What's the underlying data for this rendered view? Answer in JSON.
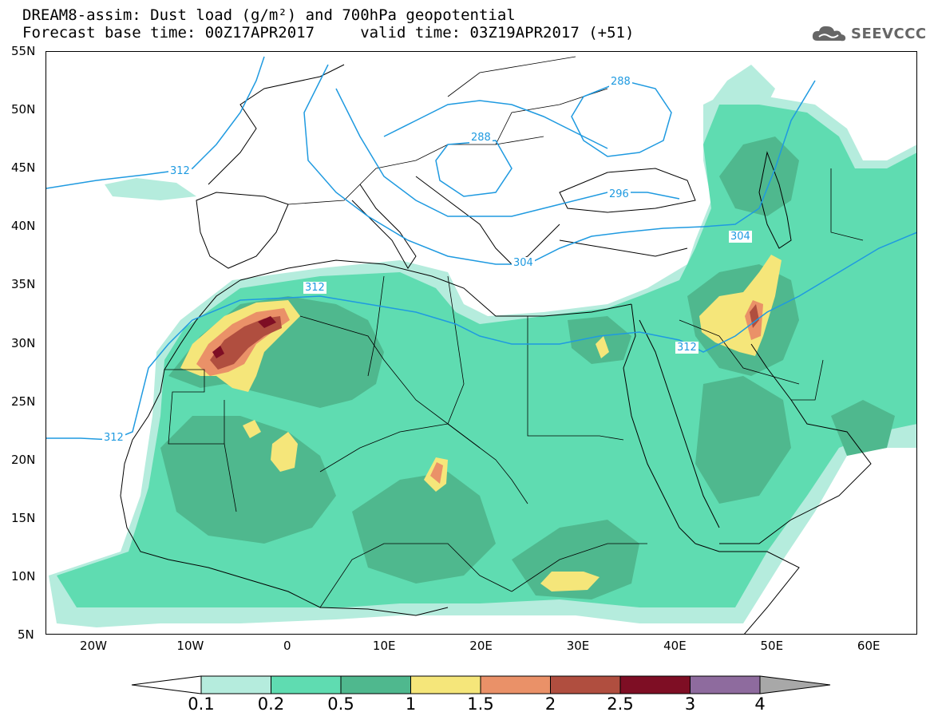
{
  "title_line1": "DREAM8-assim: Dust load (g/m²) and 700hPa geopotential",
  "title_line2": "Forecast base time: 00Z17APR2017     valid time: 03Z19APR2017 (+51)",
  "logo": {
    "icon": "cloud-icon",
    "text": "SEEVCCC"
  },
  "lat_labels": [
    "55N",
    "50N",
    "45N",
    "40N",
    "35N",
    "30N",
    "25N",
    "20N",
    "15N",
    "10N",
    "5N"
  ],
  "lon_labels": [
    "20W",
    "10W",
    "0",
    "10E",
    "20E",
    "30E",
    "40E",
    "50E",
    "60E"
  ],
  "contour_labels": {
    "c288_east": "288",
    "c288_balkan": "288",
    "c296": "296",
    "c304_greece": "304",
    "c304_east": "304",
    "c312_west_north": "312",
    "c312_africa": "312",
    "c312_mideast": "312",
    "c312_south_west": "312"
  },
  "colorbar": {
    "labels": [
      "0.1",
      "0.2",
      "0.5",
      "1",
      "1.5",
      "2",
      "2.5",
      "3",
      "4"
    ],
    "colors": [
      "#b5ecdd",
      "#5fdcb1",
      "#4fb88e",
      "#f5e67a",
      "#ea9168",
      "#b04e3f",
      "#7e0e24",
      "#8e6b9e"
    ],
    "under_color": "#ffffff",
    "over_color": "#a8a8a8"
  },
  "colors": {
    "geopotential_contour": "#1f9ae0",
    "coastline": "#000000"
  }
}
